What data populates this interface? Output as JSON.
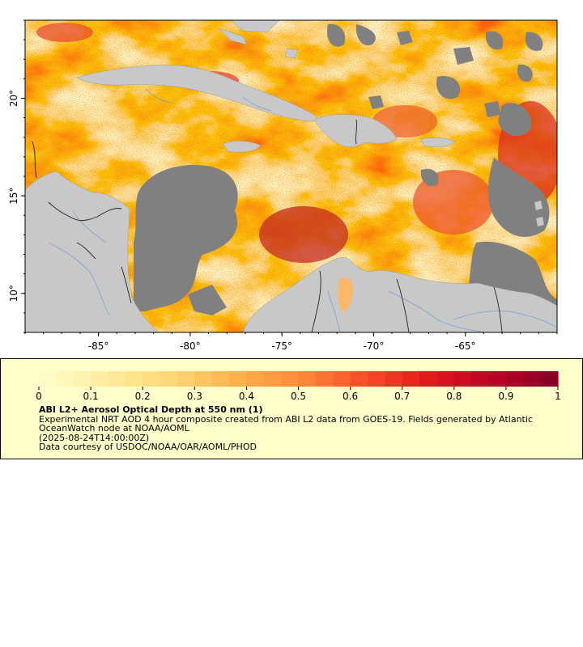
{
  "map": {
    "lon_range": [
      -89,
      -60
    ],
    "lat_range": [
      8,
      24
    ],
    "x_ticks": [
      {
        "value": -85,
        "label": "-85°"
      },
      {
        "value": -80,
        "label": "-80°"
      },
      {
        "value": -75,
        "label": "-75°"
      },
      {
        "value": -70,
        "label": "-70°"
      },
      {
        "value": -65,
        "label": "-65°"
      }
    ],
    "y_ticks": [
      {
        "value": 20,
        "label": "20°"
      },
      {
        "value": 15,
        "label": "15°"
      },
      {
        "value": 10,
        "label": "10°"
      }
    ],
    "colors": {
      "land": "#c8c8c8",
      "no_data": "#808080",
      "border": "#1a1a1a",
      "river": "#6b9bd6",
      "frame": "#000000"
    }
  },
  "legend": {
    "colorbar": {
      "min": 0,
      "max": 1,
      "tick_labels": [
        "0",
        "0.1",
        "0.2",
        "0.3",
        "0.4",
        "0.5",
        "0.6",
        "0.7",
        "0.8",
        "0.9",
        "1"
      ],
      "steps": 30,
      "color_stops": [
        "#ffffcc",
        "#ffeda0",
        "#fed976",
        "#feb24c",
        "#fd8d3c",
        "#fc4e2a",
        "#e31a1c",
        "#bd0026",
        "#800026"
      ]
    },
    "title": "ABI L2+ Aerosol Optical Depth at 550 nm (1)",
    "description": "Experimental NRT AOD 4 hour composite created from ABI L2 data from GOES-19. Fields generated by Atlantic OceanWatch node at NOAA/AOML",
    "timestamp": "(2025-08-24T14:00:00Z)",
    "credit": "Data courtesy of USDOC/NOAA/OAR/AOML/PHOD"
  }
}
